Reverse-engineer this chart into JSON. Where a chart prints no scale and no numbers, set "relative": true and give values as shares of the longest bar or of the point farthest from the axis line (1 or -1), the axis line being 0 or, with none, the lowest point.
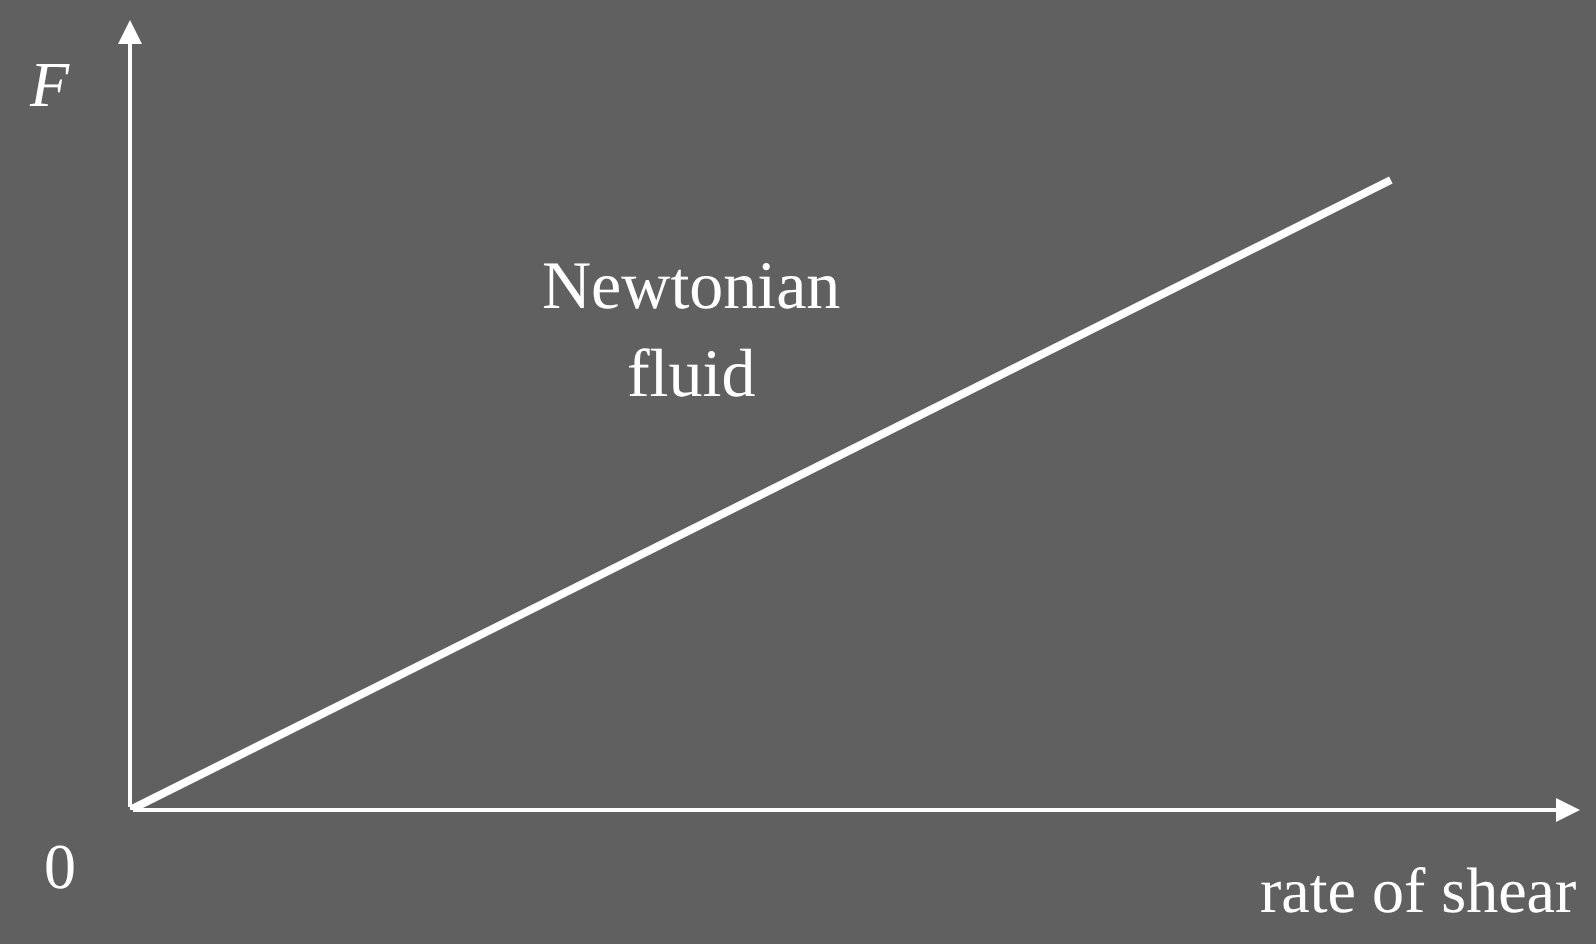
{
  "chart_data": {
    "type": "line",
    "relative": true,
    "xlabel": "rate of shear",
    "ylabel": "F",
    "marker": "none",
    "categories": [
      null,
      null
    ],
    "series": [
      {
        "name": "Newtonian fluid",
        "color": "#ffffff",
        "values": [
          0,
          1
        ]
      }
    ],
    "annotations": [
      "0"
    ]
  }
}
